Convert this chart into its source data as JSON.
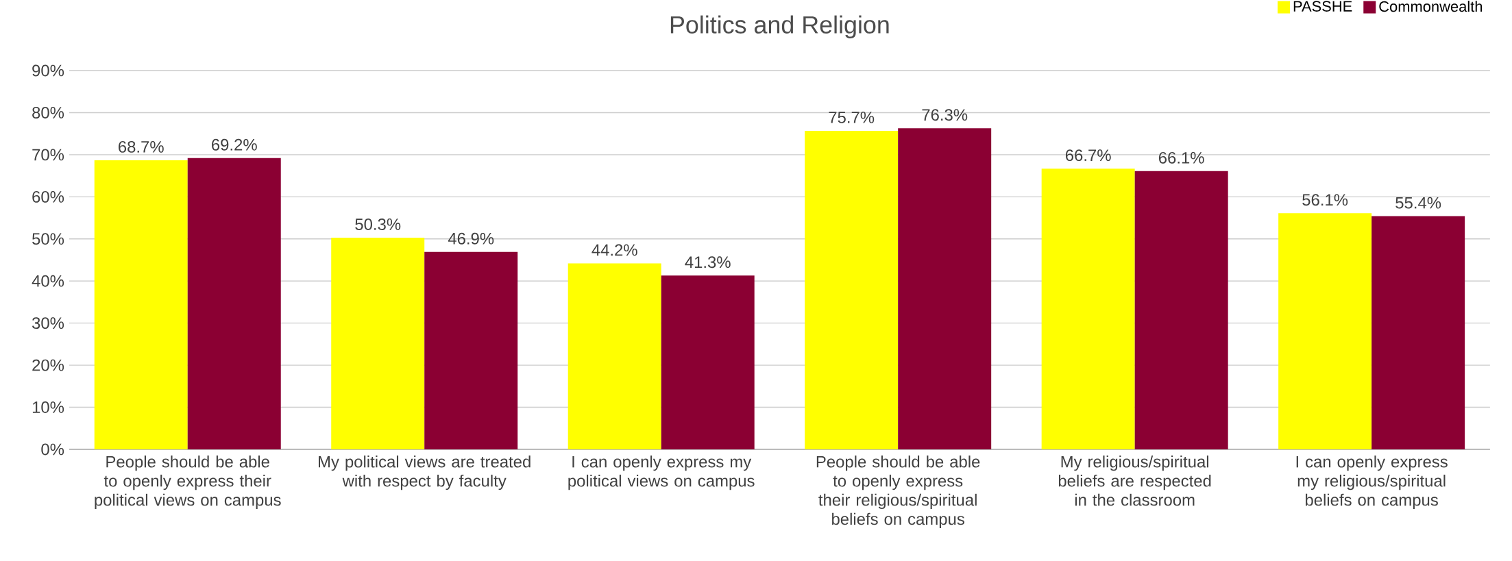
{
  "chart_data": {
    "type": "bar",
    "title": "Politics and Religion",
    "categories": [
      "People should be able to openly express their political views on campus",
      "My political views are treated with respect by faculty",
      "I can openly express my political views on campus",
      "People should be able to openly express their religious/spiritual beliefs on campus",
      "My religious/spiritual beliefs are respected in the classroom",
      "I can openly express my religious/spiritual beliefs on campus"
    ],
    "series": [
      {
        "name": "PASSHE",
        "color": "#ffff00",
        "values": [
          68.7,
          50.3,
          44.2,
          75.7,
          66.7,
          56.1
        ],
        "value_labels": [
          "68.7%",
          "50.3%",
          "44.2%",
          "75.7%",
          "66.7%",
          "56.1%"
        ]
      },
      {
        "name": "Commonwealth",
        "color": "#8b0033",
        "values": [
          69.2,
          46.9,
          41.3,
          76.3,
          66.1,
          55.4
        ],
        "value_labels": [
          "69.2%",
          "46.9%",
          "41.3%",
          "76.3%",
          "66.1%",
          "55.4%"
        ]
      }
    ],
    "ylim": [
      0,
      90
    ],
    "yticks": [
      {
        "value": 0,
        "label": "0%"
      },
      {
        "value": 10,
        "label": "10%"
      },
      {
        "value": 20,
        "label": "20%"
      },
      {
        "value": 30,
        "label": "30%"
      },
      {
        "value": 40,
        "label": "40%"
      },
      {
        "value": 50,
        "label": "50%"
      },
      {
        "value": 60,
        "label": "60%"
      },
      {
        "value": 70,
        "label": "70%"
      },
      {
        "value": 80,
        "label": "80%"
      },
      {
        "value": 90,
        "label": "90%"
      }
    ],
    "grid": "y",
    "legend": "top right"
  }
}
